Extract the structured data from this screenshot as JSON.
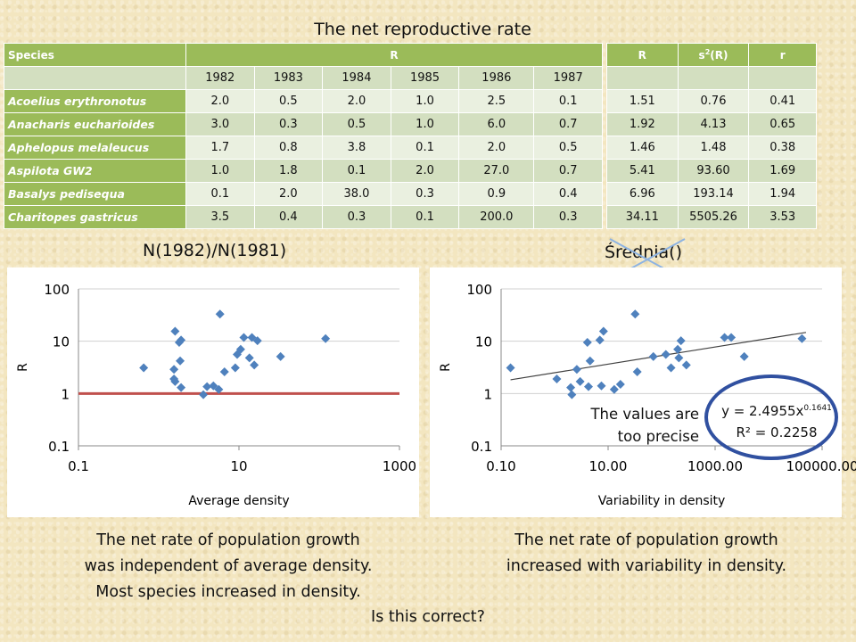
{
  "title": "The net reproductive rate",
  "table1": {
    "col_species": "Species",
    "col_r": "R",
    "years": [
      "1982",
      "1983",
      "1984",
      "1985",
      "1986",
      "1987"
    ],
    "rows": [
      {
        "species": "Acoelius erythronotus",
        "values": [
          "2.0",
          "0.5",
          "2.0",
          "1.0",
          "2.5",
          "0.1"
        ]
      },
      {
        "species": "Anacharis eucharioides",
        "values": [
          "3.0",
          "0.3",
          "0.5",
          "1.0",
          "6.0",
          "0.7"
        ]
      },
      {
        "species": "Aphelopus melaleucus",
        "values": [
          "1.7",
          "0.8",
          "3.8",
          "0.1",
          "2.0",
          "0.5"
        ]
      },
      {
        "species": "Aspilota GW2",
        "values": [
          "1.0",
          "1.8",
          "0.1",
          "2.0",
          "27.0",
          "0.7"
        ]
      },
      {
        "species": "Basalys pedisequa",
        "values": [
          "0.1",
          "2.0",
          "38.0",
          "0.3",
          "0.9",
          "0.4"
        ]
      },
      {
        "species": "Charitopes gastricus",
        "values": [
          "3.5",
          "0.4",
          "0.3",
          "0.1",
          "200.0",
          "0.3"
        ]
      }
    ]
  },
  "table2": {
    "headers": {
      "r_mean": "R",
      "s2_base": "s",
      "s2_sup": "2",
      "s2_tail": "(R)",
      "r": "r"
    },
    "rows": [
      [
        "1.51",
        "0.76",
        "0.41"
      ],
      [
        "1.92",
        "4.13",
        "0.65"
      ],
      [
        "1.46",
        "1.48",
        "0.38"
      ],
      [
        "5.41",
        "93.60",
        "1.69"
      ],
      [
        "6.96",
        "193.14",
        "1.94"
      ],
      [
        "34.11",
        "5505.26",
        "3.53"
      ]
    ]
  },
  "label_ratio": "N(1982)/N(1981)",
  "label_srednia": "Średnia()",
  "note_precise": [
    "The values are",
    "too precise"
  ],
  "equation": {
    "prefix": "y = 2.4955x",
    "exponent": "0.1641",
    "r2": "R² = 0.2258"
  },
  "caption_left": [
    "The net rate of population growth",
    "was independent of average density.",
    "Most species increased in density."
  ],
  "caption_right": [
    "The net rate of population growth",
    "increased with variability in density."
  ],
  "question": "Is this correct?",
  "colors": {
    "marker": "#4f81bd",
    "reference_line": "#c0504d",
    "trendline": "#404040",
    "circle": "#3050a0",
    "header_green": "#9bbb59"
  },
  "chart_data": [
    {
      "type": "scatter",
      "xlabel": "Average density",
      "ylabel": "R",
      "x_scale": "log",
      "y_scale": "log",
      "xlim": [
        0.1,
        1000
      ],
      "ylim": [
        0.1,
        100
      ],
      "xticks": [
        "0.1",
        "10",
        "1000"
      ],
      "yticks": [
        "0.1",
        "1",
        "10",
        "100"
      ],
      "reference_line": {
        "y": 1
      },
      "points": [
        [
          0.65,
          3.1
        ],
        [
          1.6,
          15.5
        ],
        [
          1.9,
          10.5
        ],
        [
          1.8,
          9.5
        ],
        [
          1.85,
          4.2
        ],
        [
          1.55,
          2.9
        ],
        [
          1.55,
          1.9
        ],
        [
          1.6,
          1.7
        ],
        [
          1.9,
          1.3
        ],
        [
          3.6,
          0.95
        ],
        [
          4.0,
          1.35
        ],
        [
          4.8,
          1.4
        ],
        [
          5.6,
          1.2
        ],
        [
          5.8,
          33
        ],
        [
          6.6,
          2.6
        ],
        [
          9.0,
          3.1
        ],
        [
          9.5,
          5.6
        ],
        [
          10.5,
          7.0
        ],
        [
          11.5,
          11.8
        ],
        [
          13.5,
          4.8
        ],
        [
          14.5,
          11.8
        ],
        [
          15.5,
          3.5
        ],
        [
          17,
          10.2
        ],
        [
          33,
          5.1
        ],
        [
          120,
          11.2
        ]
      ]
    },
    {
      "type": "scatter",
      "xlabel": "Variability in density",
      "ylabel": "R",
      "x_scale": "log",
      "y_scale": "log",
      "xlim": [
        0.1,
        100000
      ],
      "ylim": [
        0.1,
        100
      ],
      "xticks": [
        "0.10",
        "10.00",
        "1000.00",
        "100000.00"
      ],
      "yticks": [
        "0.1",
        "1",
        "10",
        "100"
      ],
      "trendline": {
        "type": "power",
        "a": 2.4955,
        "b": 0.1641,
        "x_range": [
          0.15,
          50000
        ]
      },
      "points": [
        [
          0.15,
          3.1
        ],
        [
          1.1,
          1.9
        ],
        [
          2.0,
          1.3
        ],
        [
          2.1,
          0.95
        ],
        [
          2.6,
          2.9
        ],
        [
          3.0,
          1.7
        ],
        [
          4.1,
          9.5
        ],
        [
          4.6,
          4.2
        ],
        [
          4.3,
          1.35
        ],
        [
          7.0,
          10.5
        ],
        [
          8.2,
          15.5
        ],
        [
          7.5,
          1.4
        ],
        [
          13,
          1.2
        ],
        [
          17,
          1.5
        ],
        [
          32,
          33
        ],
        [
          35,
          2.6
        ],
        [
          70,
          5.1
        ],
        [
          120,
          5.6
        ],
        [
          150,
          3.1
        ],
        [
          200,
          7.0
        ],
        [
          210,
          4.8
        ],
        [
          230,
          10.2
        ],
        [
          290,
          3.5
        ],
        [
          1500,
          11.8
        ],
        [
          2000,
          11.8
        ],
        [
          3500,
          5.1
        ],
        [
          42000,
          11.2
        ]
      ]
    }
  ]
}
